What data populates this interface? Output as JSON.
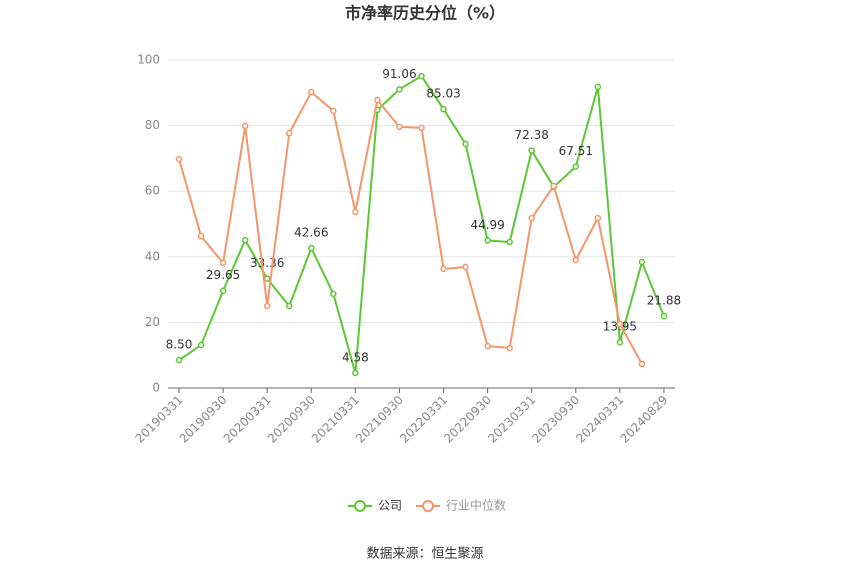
{
  "chart_data": {
    "type": "line",
    "title": "市净率历史分位（%）",
    "source": "数据来源：恒生聚源",
    "categories": [
      "20190331",
      null,
      "20190930",
      null,
      "20200331",
      null,
      "20200930",
      null,
      "20210331",
      null,
      "20210930",
      null,
      "20220331",
      null,
      "20220930",
      null,
      "20230331",
      null,
      "20230930",
      null,
      "20240331",
      null,
      "20240829"
    ],
    "series": [
      {
        "name": "公司",
        "color": "#5cc734",
        "values": [
          8.5,
          13.1,
          29.65,
          45.1,
          33.36,
          25.0,
          42.66,
          28.7,
          4.58,
          84.8,
          91.06,
          95.1,
          85.03,
          74.4,
          44.99,
          44.5,
          72.38,
          61.3,
          67.51,
          91.8,
          13.95,
          38.4,
          21.88
        ],
        "value_labels": [
          "8.50",
          null,
          "29.65",
          null,
          "33.36",
          null,
          "42.66",
          null,
          "4.58",
          null,
          "91.06",
          null,
          "85.03",
          null,
          "44.99",
          null,
          "72.38",
          null,
          "67.51",
          null,
          "13.95",
          null,
          "21.88"
        ]
      },
      {
        "name": "行业中位数",
        "color": "#f5956a",
        "values": [
          69.8,
          46.3,
          38.1,
          79.9,
          25.0,
          77.7,
          90.2,
          84.5,
          53.7,
          87.8,
          79.6,
          79.3,
          36.3,
          36.9,
          12.8,
          12.2,
          51.8,
          61.6,
          39.0,
          51.8,
          19.5,
          7.3,
          null
        ]
      }
    ],
    "ylim": [
      0,
      100
    ],
    "yticks": [
      0,
      20,
      40,
      60,
      80,
      100
    ],
    "grid": true
  }
}
